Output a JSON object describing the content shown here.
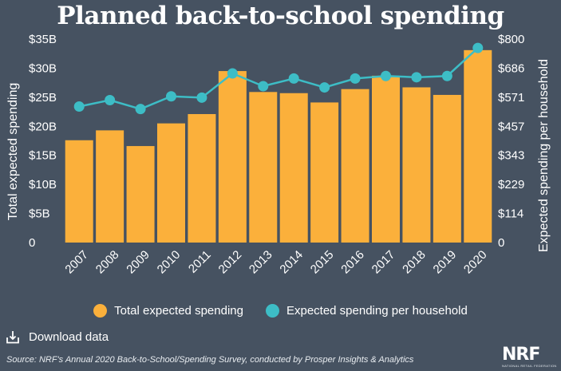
{
  "title": "Planned back-to-school spending",
  "legend": {
    "bars_label": "Total expected spending",
    "line_label": "Expected spending per household"
  },
  "download_label": "Download data",
  "source": "Source: NRF's Annual 2020 Back-to-School/Spending Survey, conducted by Prosper Insights & Analytics",
  "logo": {
    "text": "NRF",
    "tagline": "NATIONAL RETAIL FEDERATION"
  },
  "colors": {
    "background": "#465261",
    "bars": "#fbb03b",
    "line": "#3dbdc6",
    "text": "#ffffff"
  },
  "icons": {
    "download": "download-icon"
  },
  "chart_data": {
    "type": "bar",
    "categories": [
      "2007",
      "2008",
      "2009",
      "2010",
      "2011",
      "2012",
      "2013",
      "2014",
      "2015",
      "2016",
      "2017",
      "2018",
      "2019",
      "2020"
    ],
    "series": [
      {
        "name": "Total expected spending",
        "type": "bar",
        "axis": "left",
        "values": [
          17.6,
          19.3,
          16.6,
          20.5,
          22.1,
          29.5,
          25.9,
          25.7,
          24.1,
          26.4,
          28.7,
          26.7,
          25.4,
          33.1
        ]
      },
      {
        "name": "Expected spending per household",
        "type": "line",
        "axis": "right",
        "values": [
          535,
          560,
          525,
          575,
          570,
          665,
          615,
          645,
          610,
          645,
          655,
          650,
          655,
          765
        ]
      }
    ],
    "ylabel": "Total expected spending",
    "y2label": "Expected spending per household",
    "ylim": [
      0,
      35
    ],
    "y2lim": [
      0,
      800
    ],
    "yticks": [
      "0",
      "$5B",
      "$10B",
      "$15B",
      "$20B",
      "$25B",
      "$30B",
      "$35B"
    ],
    "y2ticks": [
      "0",
      "$114",
      "$229",
      "$343",
      "$457",
      "$571",
      "$686",
      "$800"
    ],
    "grid": false,
    "legend_position": "bottom"
  }
}
